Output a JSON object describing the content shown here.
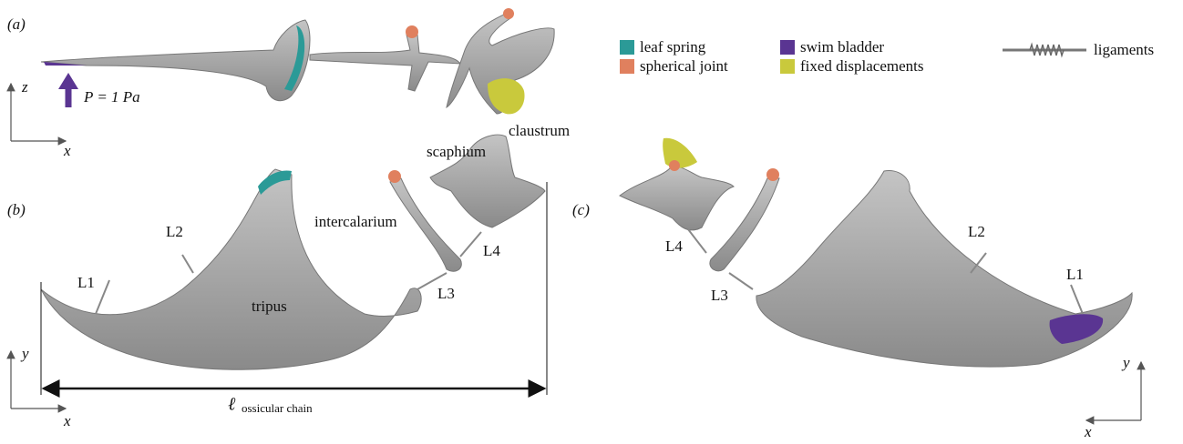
{
  "legend": [
    {
      "label": "leaf spring",
      "color": "#2b9a97"
    },
    {
      "label": "spherical joint",
      "color": "#e0805e"
    },
    {
      "label": "swim bladder",
      "color": "#5a3592"
    },
    {
      "label": "fixed displacements",
      "color": "#c9c93c"
    },
    {
      "label": "ligaments"
    }
  ],
  "panels": {
    "a": {
      "label": "(a)",
      "axis_vertical": "z",
      "axis_horizontal": "x",
      "load": "P = 1 Pa"
    },
    "b": {
      "label": "(b)",
      "axis_vertical": "y",
      "axis_horizontal": "x",
      "parts": [
        "scaphium",
        "claustrum",
        "intercalarium",
        "tripus"
      ],
      "ligaments": [
        "L1",
        "L2",
        "L3",
        "L4"
      ],
      "length_symbol": "ℓ",
      "length_subscript": "ossicular chain"
    },
    "c": {
      "label": "(c)",
      "axis_vertical": "y",
      "axis_horizontal": "x",
      "ligaments": [
        "L1",
        "L2",
        "L3",
        "L4"
      ]
    }
  }
}
